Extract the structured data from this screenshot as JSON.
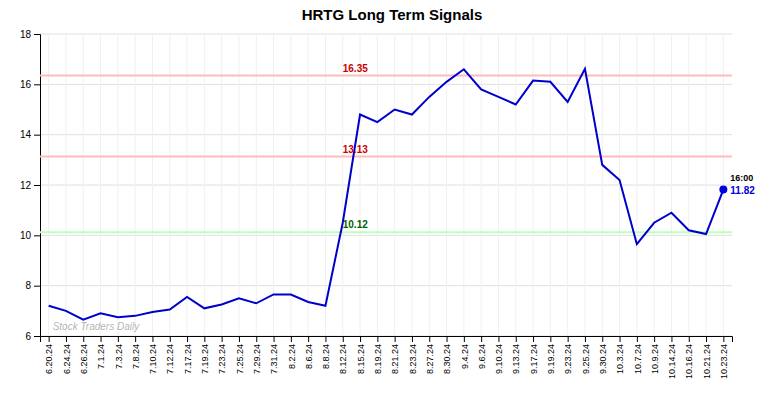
{
  "chart_data": {
    "type": "line",
    "title": "HRTG Long Term Signals",
    "categories": [
      "6.20.24",
      "6.24.24",
      "6.26.24",
      "7.1.24",
      "7.3.24",
      "7.8.24",
      "7.10.24",
      "7.12.24",
      "7.17.24",
      "7.19.24",
      "7.23.24",
      "7.25.24",
      "7.29.24",
      "7.31.24",
      "8.2.24",
      "8.6.24",
      "8.8.24",
      "8.12.24",
      "8.15.24",
      "8.19.24",
      "8.21.24",
      "8.23.24",
      "8.27.24",
      "8.30.24",
      "9.4.24",
      "9.6.24",
      "9.10.24",
      "9.13.24",
      "9.17.24",
      "9.19.24",
      "9.23.24",
      "9.25.24",
      "9.30.24",
      "10.3.24",
      "10.7.24",
      "10.9.24",
      "10.14.24",
      "10.16.24",
      "10.21.24",
      "10.23.24"
    ],
    "values": [
      7.2,
      7.0,
      6.65,
      6.9,
      6.75,
      6.8,
      6.95,
      7.05,
      7.55,
      7.1,
      7.25,
      7.5,
      7.3,
      7.65,
      7.65,
      7.35,
      7.2,
      10.5,
      14.8,
      14.5,
      15.0,
      14.8,
      15.5,
      16.1,
      16.6,
      15.8,
      15.5,
      15.2,
      16.15,
      16.1,
      15.3,
      16.62,
      12.8,
      12.2,
      9.65,
      10.5,
      10.9,
      10.2,
      10.05,
      11.82
    ],
    "color": "#0000cc",
    "ylim": [
      6,
      18
    ],
    "yticks": [
      6,
      8,
      10,
      12,
      14,
      16,
      18
    ],
    "grid": true,
    "hlines": [
      {
        "value": 16.35,
        "label": "16.35",
        "color": "#ffbbbb",
        "label_color": "#cc0000"
      },
      {
        "value": 13.13,
        "label": "13.13",
        "color": "#ffbbbb",
        "label_color": "#cc0000"
      },
      {
        "value": 10.12,
        "label": "10.12",
        "color": "#bbffbb",
        "label_color": "#006400"
      }
    ],
    "annotations": [
      {
        "text": "16:00"
      },
      {
        "text": "11.82",
        "value": 11.82,
        "color": "#0000dd"
      },
      {
        "text": "Stock Traders Daily"
      }
    ]
  }
}
